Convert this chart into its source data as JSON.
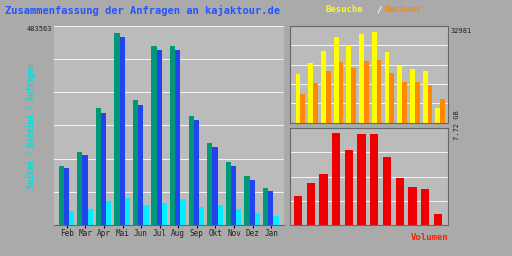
{
  "title": "Zusammenfassung der Anfragen an kajaktour.de",
  "title_color": "#2255ff",
  "bg_color": "#aaaaaa",
  "plot_bg_color": "#bbbbbb",
  "months": [
    "Feb",
    "Mar",
    "Apr",
    "Mai",
    "Jun",
    "Jul",
    "Aug",
    "Sep",
    "Okt",
    "Nov",
    "Dez",
    "Jan"
  ],
  "left_ylabel": "Seiten / Dateien / Anfragen",
  "left_ylabel_color": "#00dddd",
  "left_ymax_label": "483563",
  "right_top_ymax_label": "32981",
  "right_bottom_ymax_label": "7.72 GB",
  "legend_besuche": "Besuche",
  "legend_besuche_color": "#ffff00",
  "legend_slash_color": "#ffffff",
  "legend_rechner": "Rechner",
  "legend_rechner_color": "#ff8800",
  "volumen_label": "Volumen",
  "volumen_label_color": "#ff2200",
  "left_teal": [
    155,
    190,
    305,
    502,
    325,
    468,
    468,
    285,
    215,
    165,
    128,
    98
  ],
  "left_blue": [
    148,
    182,
    292,
    490,
    312,
    456,
    457,
    274,
    205,
    155,
    118,
    88
  ],
  "left_cyan": [
    38,
    43,
    62,
    72,
    52,
    58,
    68,
    48,
    52,
    42,
    33,
    23
  ],
  "right_top_yellow": [
    175,
    215,
    258,
    308,
    282,
    318,
    326,
    255,
    205,
    195,
    188,
    55
  ],
  "right_top_orange": [
    105,
    145,
    188,
    218,
    198,
    222,
    228,
    178,
    148,
    148,
    138,
    85
  ],
  "right_bot_red": [
    95,
    140,
    168,
    305,
    248,
    300,
    300,
    225,
    155,
    125,
    120,
    38
  ],
  "left_color_teal": "#009977",
  "left_color_blue": "#2244ee",
  "left_color_cyan": "#00eeff",
  "right_top_yellow_color": "#ffff00",
  "right_top_orange_color": "#ff8800",
  "right_bot_red_color": "#ee0000",
  "grid_color": "#ffffff",
  "border_color": "#666666",
  "tick_color": "#222222"
}
